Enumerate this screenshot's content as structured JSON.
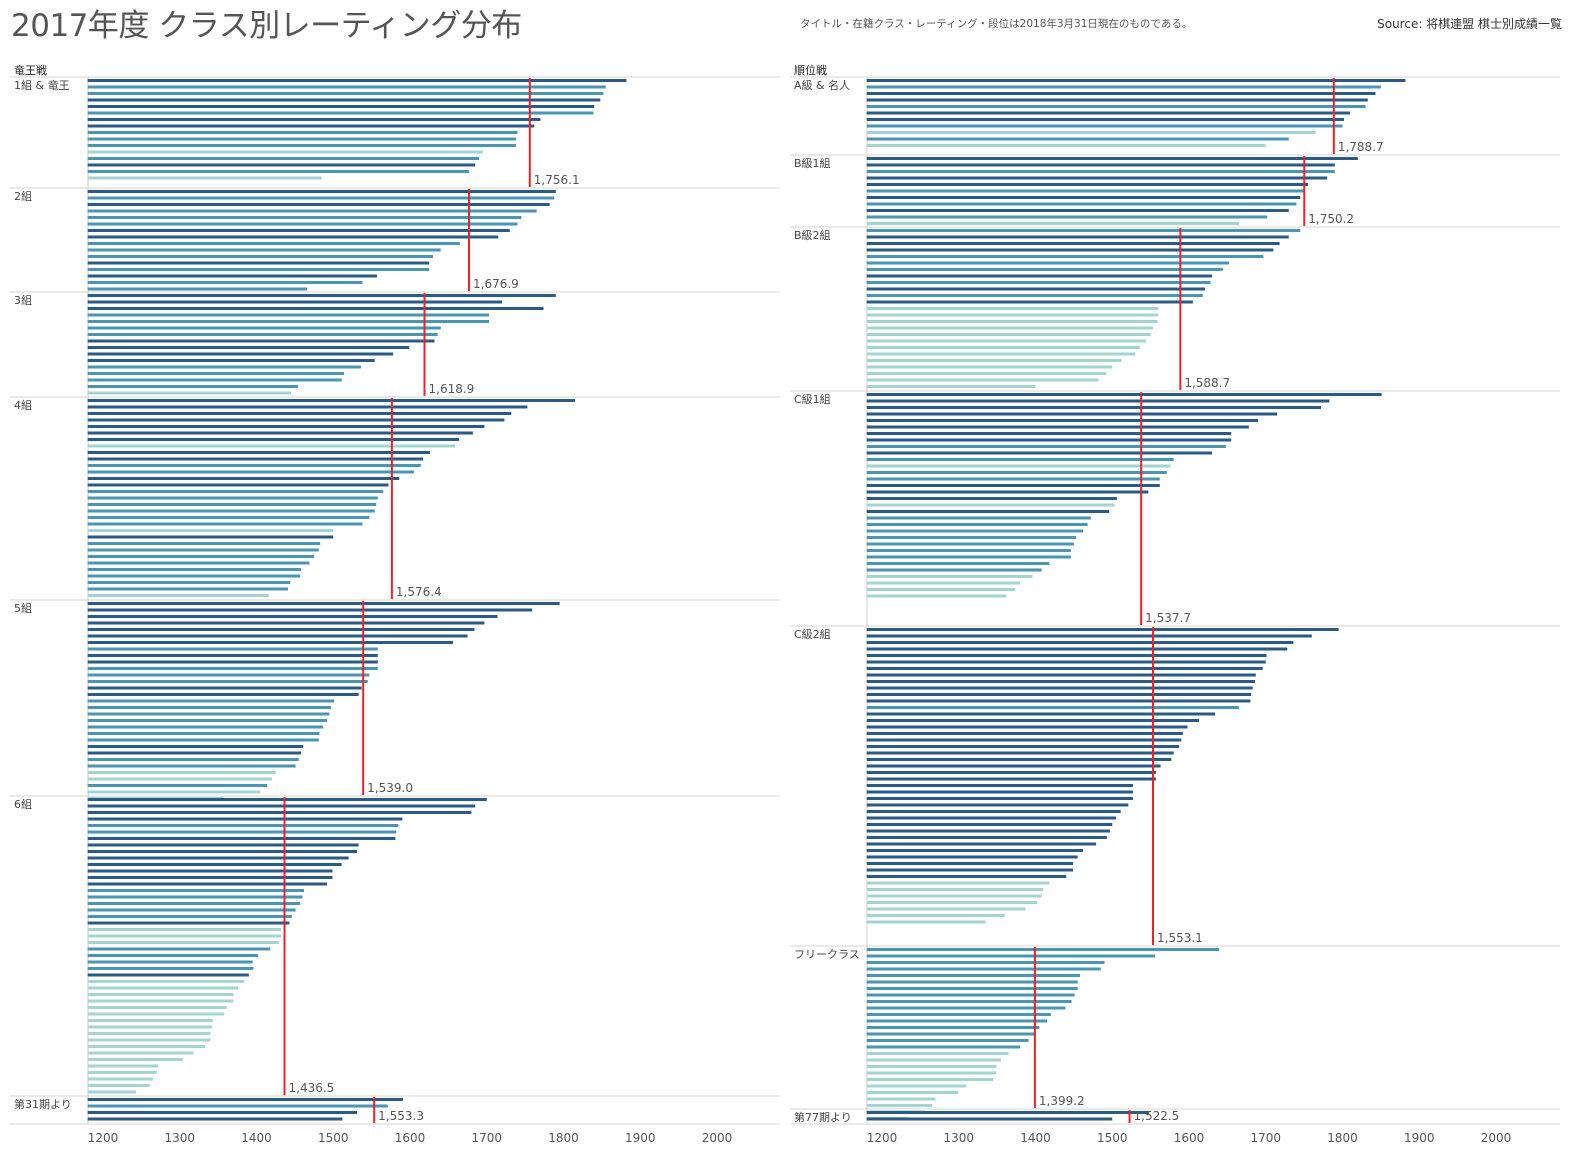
{
  "title": "2017年度 クラス別レーティング分布",
  "note": "タイトル・在籍クラス・レーティング・段位は2018年3月31日現在のものである。",
  "source": "Source: 将棋連盟 棋士別成績一覧",
  "colors": {
    "dark": "#2a5b87",
    "mid": "#4a96b2",
    "light": "#a3d3d3",
    "mean": "#e8242a",
    "grid": "#d6d6d6"
  },
  "chart_data": [
    {
      "type": "bar",
      "title": "竜王戦",
      "x_ticks": [
        1200,
        1300,
        1400,
        1500,
        1600,
        1700,
        1800,
        1900,
        2000
      ],
      "xlim": [
        1180,
        2080
      ],
      "groups": [
        {
          "label": "1組 & 竜王",
          "mean": 1756.1,
          "mean_label": "1,756.1",
          "values": [
            1882,
            1855,
            1852,
            1848,
            1840,
            1839,
            1770,
            1762,
            1740,
            1738,
            1738,
            1695,
            1690,
            1685,
            1677,
            1485
          ],
          "shades": [
            "dark",
            "mid",
            "mid",
            "dark",
            "dark",
            "mid",
            "dark",
            "dark",
            "mid",
            "mid",
            "mid",
            "light",
            "mid",
            "dark",
            "mid",
            "light"
          ]
        },
        {
          "label": "2組",
          "mean": 1676.9,
          "mean_label": "1,676.9",
          "values": [
            1790,
            1788,
            1782,
            1765,
            1745,
            1740,
            1730,
            1715,
            1665,
            1640,
            1630,
            1625,
            1625,
            1557,
            1538,
            1466
          ],
          "shades": [
            "dark",
            "mid",
            "dark",
            "mid",
            "mid",
            "mid",
            "dark",
            "dark",
            "mid",
            "mid",
            "mid",
            "dark",
            "mid",
            "dark",
            "mid",
            "mid"
          ]
        },
        {
          "label": "3組",
          "mean": 1618.9,
          "mean_label": "1,618.9",
          "values": [
            1790,
            1720,
            1774,
            1703,
            1703,
            1640,
            1636,
            1632,
            1599,
            1578,
            1554,
            1536,
            1514,
            1511,
            1454,
            1445
          ],
          "shades": [
            "dark",
            "dark",
            "dark",
            "mid",
            "mid",
            "mid",
            "mid",
            "dark",
            "dark",
            "dark",
            "dark",
            "mid",
            "mid",
            "mid",
            "mid",
            "light"
          ]
        },
        {
          "label": "4組",
          "mean": 1576.4,
          "mean_label": "1,576.4",
          "values": [
            1815,
            1753,
            1732,
            1723,
            1697,
            1682,
            1664,
            1659,
            1626,
            1617,
            1614,
            1605,
            1586,
            1572,
            1565,
            1558,
            1556,
            1554,
            1547,
            1538,
            1500,
            1500,
            1483,
            1481,
            1475,
            1469,
            1458,
            1457,
            1444,
            1441,
            1416
          ],
          "shades": [
            "dark",
            "dark",
            "dark",
            "dark",
            "dark",
            "dark",
            "dark",
            "light",
            "dark",
            "dark",
            "mid",
            "mid",
            "dark",
            "dark",
            "mid",
            "mid",
            "mid",
            "mid",
            "mid",
            "mid",
            "light",
            "dark",
            "mid",
            "mid",
            "mid",
            "mid",
            "mid",
            "mid",
            "mid",
            "mid",
            "light"
          ]
        },
        {
          "label": "5組",
          "mean": 1539.0,
          "mean_label": "1,539.0",
          "values": [
            1795,
            1759,
            1714,
            1697,
            1684,
            1675,
            1656,
            1558,
            1558,
            1558,
            1558,
            1547,
            1545,
            1537,
            1533,
            1501,
            1497,
            1495,
            1492,
            1487,
            1482,
            1481,
            1461,
            1458,
            1455,
            1451,
            1425,
            1420,
            1414,
            1405,
            1356
          ],
          "shades": [
            "dark",
            "dark",
            "dark",
            "dark",
            "dark",
            "dark",
            "dark",
            "mid",
            "dark",
            "dark",
            "mid",
            "mid",
            "mid",
            "dark",
            "dark",
            "mid",
            "mid",
            "mid",
            "mid",
            "mid",
            "mid",
            "mid",
            "dark",
            "dark",
            "mid",
            "mid",
            "light",
            "light",
            "mid",
            "light",
            "light"
          ]
        },
        {
          "label": "6組",
          "mean": 1436.5,
          "mean_label": "1,436.5",
          "values": [
            1700,
            1685,
            1680,
            1590,
            1585,
            1582,
            1581,
            1533,
            1531,
            1520,
            1511,
            1499,
            1499,
            1492,
            1462,
            1460,
            1457,
            1451,
            1446,
            1443,
            1432,
            1432,
            1429,
            1418,
            1402,
            1395,
            1396,
            1390,
            1384,
            1376,
            1370,
            1370,
            1361,
            1358,
            1343,
            1342,
            1340,
            1340,
            1333,
            1318,
            1304,
            1272,
            1270,
            1265,
            1261,
            1243
          ],
          "shades": [
            "dark",
            "dark",
            "dark",
            "dark",
            "mid",
            "mid",
            "dark",
            "dark",
            "dark",
            "dark",
            "dark",
            "dark",
            "dark",
            "dark",
            "mid",
            "mid",
            "mid",
            "mid",
            "mid",
            "dark",
            "light",
            "light",
            "light",
            "mid",
            "mid",
            "mid",
            "mid",
            "dark",
            "light",
            "light",
            "light",
            "light",
            "light",
            "light",
            "light",
            "light",
            "light",
            "light",
            "light",
            "light",
            "light",
            "light",
            "light",
            "light",
            "light",
            "light"
          ]
        },
        {
          "label": "第31期より",
          "mean": 1553.3,
          "mean_label": "1,553.3",
          "values": [
            1591,
            1571,
            1531,
            1512
          ],
          "shades": [
            "dark",
            "mid",
            "dark",
            "dark"
          ]
        }
      ]
    },
    {
      "type": "bar",
      "title": "順位戦",
      "x_ticks": [
        1200,
        1300,
        1400,
        1500,
        1600,
        1700,
        1800,
        1900,
        2000
      ],
      "xlim": [
        1180,
        2080
      ],
      "groups": [
        {
          "label": "A級 & 名人",
          "mean": 1788.7,
          "mean_label": "1,788.7",
          "values": [
            1882,
            1850,
            1843,
            1833,
            1830,
            1810,
            1802,
            1800,
            1765,
            1730,
            1700
          ],
          "shades": [
            "dark",
            "mid",
            "dark",
            "dark",
            "mid",
            "dark",
            "dark",
            "mid",
            "light",
            "mid",
            "light"
          ]
        },
        {
          "label": "B級1組",
          "mean": 1750.2,
          "mean_label": "1,750.2",
          "values": [
            1820,
            1790,
            1790,
            1780,
            1755,
            1750,
            1745,
            1740,
            1730,
            1702,
            1665
          ],
          "shades": [
            "dark",
            "dark",
            "mid",
            "dark",
            "dark",
            "mid",
            "dark",
            "mid",
            "dark",
            "mid",
            "light"
          ]
        },
        {
          "label": "B級2組",
          "mean": 1588.7,
          "mean_label": "1,588.7",
          "values": [
            1745,
            1730,
            1718,
            1710,
            1697,
            1652,
            1644,
            1630,
            1628,
            1621,
            1618,
            1605,
            1560,
            1560,
            1559,
            1553,
            1550,
            1544,
            1536,
            1530,
            1512,
            1500,
            1492,
            1482,
            1400
          ],
          "shades": [
            "mid",
            "dark",
            "dark",
            "dark",
            "mid",
            "mid",
            "mid",
            "dark",
            "mid",
            "dark",
            "mid",
            "dark",
            "light",
            "light",
            "light",
            "light",
            "light",
            "light",
            "light",
            "light",
            "light",
            "light",
            "light",
            "light",
            "light"
          ]
        },
        {
          "label": "C級1組",
          "mean": 1537.7,
          "mean_label": "1,537.7",
          "values": [
            1851,
            1783,
            1772,
            1715,
            1690,
            1678,
            1655,
            1655,
            1648,
            1630,
            1580,
            1576,
            1571,
            1562,
            1562,
            1547,
            1506,
            1503,
            1496,
            1472,
            1468,
            1462,
            1453,
            1450,
            1446,
            1446,
            1418,
            1408,
            1396,
            1380,
            1373,
            1362
          ],
          "shades": [
            "dark",
            "dark",
            "dark",
            "dark",
            "dark",
            "dark",
            "dark",
            "dark",
            "mid",
            "dark",
            "mid",
            "light",
            "mid",
            "mid",
            "dark",
            "dark",
            "dark",
            "light",
            "dark",
            "mid",
            "mid",
            "mid",
            "mid",
            "mid",
            "mid",
            "mid",
            "mid",
            "mid",
            "light",
            "light",
            "light",
            "light"
          ]
        },
        {
          "label": "C級2組",
          "mean": 1553.1,
          "mean_label": "1,553.1",
          "values": [
            1795,
            1760,
            1736,
            1728,
            1701,
            1700,
            1696,
            1687,
            1686,
            1683,
            1681,
            1680,
            1665,
            1634,
            1613,
            1598,
            1592,
            1590,
            1587,
            1580,
            1577,
            1563,
            1557,
            1557,
            1527,
            1527,
            1527,
            1521,
            1511,
            1505,
            1500,
            1497,
            1493,
            1479,
            1462,
            1455,
            1449,
            1449,
            1440,
            1418,
            1410,
            1408,
            1402,
            1387,
            1360,
            1335
          ],
          "shades": [
            "dark",
            "dark",
            "dark",
            "dark",
            "dark",
            "dark",
            "dark",
            "dark",
            "dark",
            "dark",
            "dark",
            "dark",
            "mid",
            "dark",
            "dark",
            "dark",
            "dark",
            "dark",
            "dark",
            "dark",
            "dark",
            "dark",
            "dark",
            "dark",
            "dark",
            "dark",
            "dark",
            "dark",
            "dark",
            "dark",
            "dark",
            "dark",
            "dark",
            "dark",
            "dark",
            "dark",
            "dark",
            "dark",
            "dark",
            "light",
            "light",
            "light",
            "light",
            "light",
            "light",
            "light"
          ]
        },
        {
          "label": "フリークラス",
          "mean": 1399.2,
          "mean_label": "1,399.2",
          "values": [
            1639,
            1556,
            1490,
            1485,
            1458,
            1455,
            1455,
            1451,
            1447,
            1439,
            1420,
            1415,
            1405,
            1400,
            1391,
            1380,
            1365,
            1355,
            1349,
            1349,
            1345,
            1310,
            1299,
            1270,
            1265,
            1256,
            1235
          ],
          "shades": [
            "mid",
            "mid",
            "mid",
            "mid",
            "mid",
            "mid",
            "mid",
            "mid",
            "mid",
            "mid",
            "mid",
            "mid",
            "mid",
            "mid",
            "mid",
            "mid",
            "light",
            "light",
            "light",
            "light",
            "light",
            "light",
            "light",
            "light",
            "light",
            "light",
            "light"
          ]
        },
        {
          "label": "第77期より",
          "mean": 1522.5,
          "mean_label": "1,522.5",
          "values": [
            1548,
            1500
          ],
          "shades": [
            "dark",
            "dark"
          ]
        }
      ]
    }
  ]
}
